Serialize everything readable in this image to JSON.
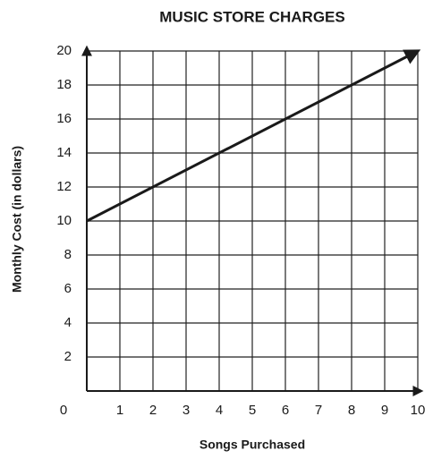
{
  "chart_data": {
    "type": "line",
    "title": "MUSIC STORE CHARGES",
    "x_label": "Songs Purchased",
    "y_label": "Monthly Cost (in dollars)",
    "x": [
      0,
      10
    ],
    "values": [
      10,
      20
    ],
    "color": "#1a1a1a",
    "xlim": [
      0,
      10
    ],
    "xticks": [
      0,
      1,
      2,
      3,
      4,
      5,
      6,
      7,
      8,
      9,
      10
    ],
    "ylim": [
      0,
      20
    ],
    "yticks": [
      2,
      4,
      6,
      8,
      10,
      12,
      14,
      16,
      18,
      20
    ],
    "grid": true
  }
}
